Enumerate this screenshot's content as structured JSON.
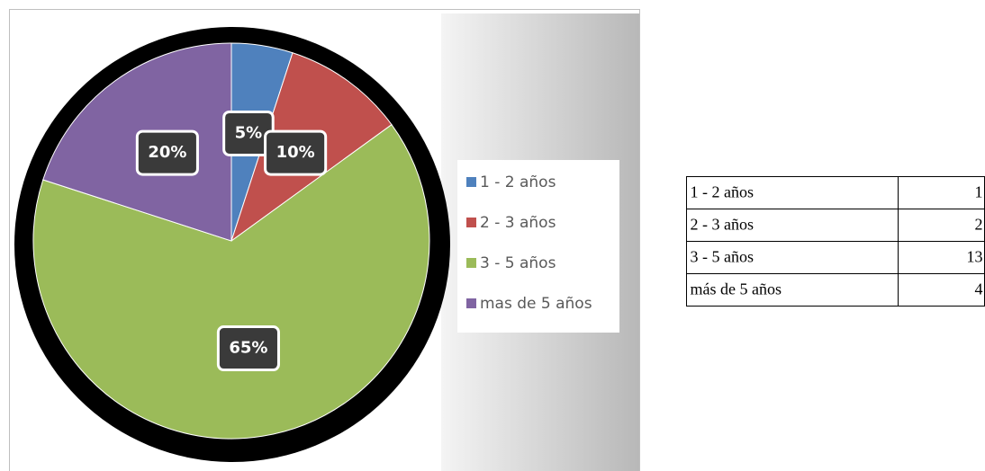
{
  "chart_data": {
    "type": "pie",
    "categories": [
      "1 - 2 años",
      "2 - 3 años",
      "3 - 5 años",
      "mas de 5 años"
    ],
    "values": [
      5,
      10,
      65,
      20
    ],
    "value_labels": [
      "5%",
      "10%",
      "65%",
      "20%"
    ],
    "colors": [
      "#4f81bd",
      "#c0504d",
      "#9bbb59",
      "#8064a2"
    ],
    "legend": "right"
  },
  "table": {
    "rows": [
      [
        "1 - 2 años",
        "1"
      ],
      [
        "2 - 3 años",
        "2"
      ],
      [
        "3 - 5 años",
        "13"
      ],
      [
        "más de 5 años",
        "4"
      ]
    ]
  }
}
